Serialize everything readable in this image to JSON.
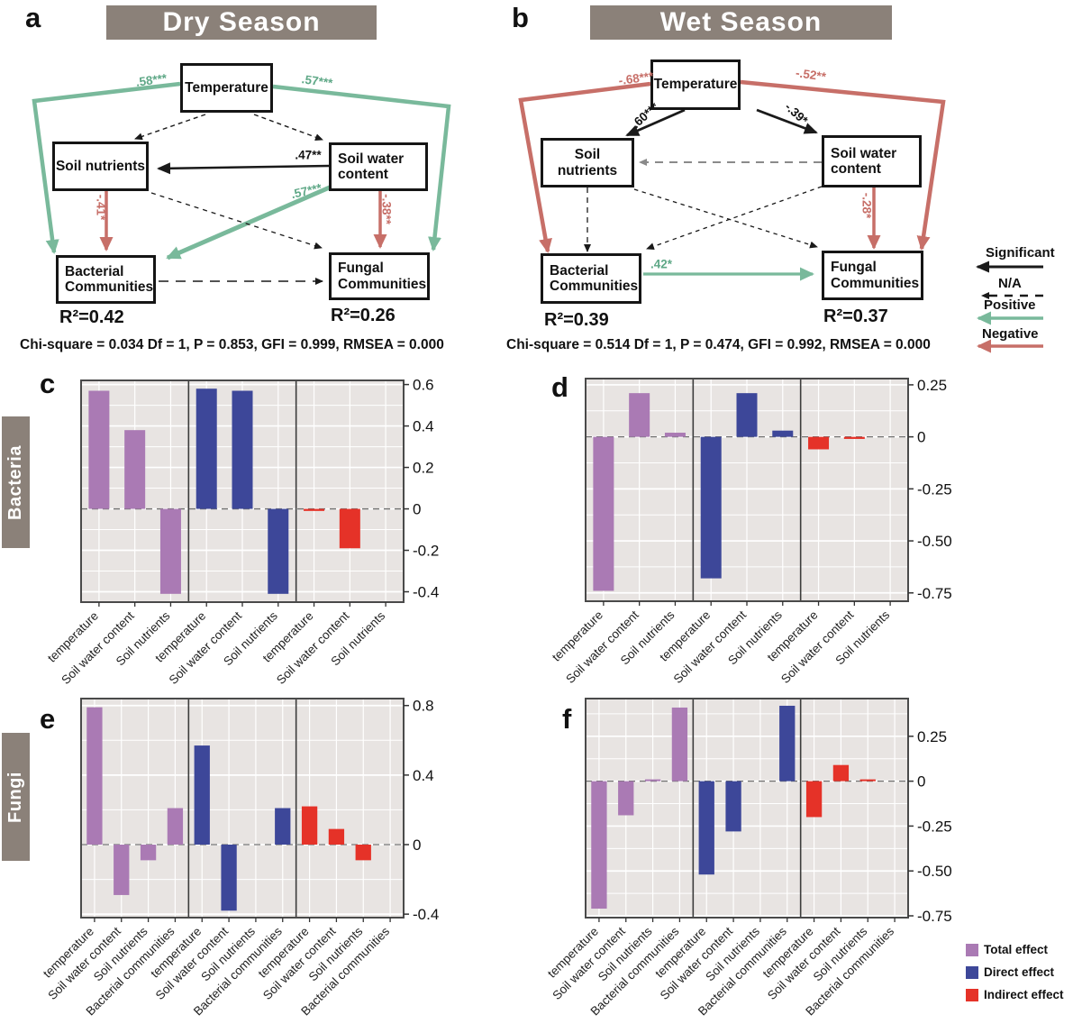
{
  "colors": {
    "banner_gray": "#8b8179",
    "positive_green": "#79b99b",
    "negative_red": "#c76f68",
    "total_purple": "#aa7ab4",
    "direct_blue": "#3d4799",
    "indirect_red": "#e53228",
    "plot_bg": "#e8e4e2"
  },
  "sem": {
    "dry": {
      "letter": "a",
      "title": "Dry Season",
      "boxes": {
        "temperature": "Temperature",
        "nutrients": "Soil nutrients",
        "swc": "Soil water content",
        "bacterial": "Bacterial Communities",
        "fungal": "Fungal Communities"
      },
      "labels": {
        "temp_bacterial": ".58***",
        "temp_fungal": ".57***",
        "swc_nutrients": ".47**",
        "nutrients_bacterial": "-.41*",
        "swc_fungal": "-.38**",
        "swc_bacterial": ".57***"
      },
      "r2_bacterial": "R²=0.42",
      "r2_fungal": "R²=0.26",
      "fit": "Chi-square = 0.034 Df = 1, P = 0.853, GFI = 0.999, RMSEA = 0.000"
    },
    "wet": {
      "letter": "b",
      "title": "Wet Season",
      "boxes": {
        "temperature": "Temperature",
        "nutrients": "Soil nutrients",
        "swc": "Soil water content",
        "bacterial": "Bacterial Communities",
        "fungal": "Fungal Communities"
      },
      "labels": {
        "temp_bacterial": "-.68***",
        "temp_fungal": "-.52**",
        "temp_nutrients": ".60***",
        "temp_swc": "-.39*",
        "swc_fungal": "-.28*",
        "bacterial_fungal": ".42*"
      },
      "r2_bacterial": "R²=0.39",
      "r2_fungal": "R²=0.37",
      "fit": "Chi-square = 0.514 Df = 1, P = 0.474, GFI = 0.992, RMSEA = 0.000"
    }
  },
  "arrow_legend": [
    {
      "label": "Significant",
      "type": "solid-black"
    },
    {
      "label": "N/A",
      "type": "dashed-black"
    },
    {
      "label": "Positive",
      "type": "solid-green"
    },
    {
      "label": "Negative",
      "type": "solid-red"
    }
  ],
  "row_banners": {
    "bacteria": "Bacteria",
    "fungi": "Fungi"
  },
  "effect_legend": [
    {
      "label": "Total effect",
      "color": "#aa7ab4"
    },
    {
      "label": "Direct effect",
      "color": "#3d4799"
    },
    {
      "label": "Indirect effect",
      "color": "#e53228"
    }
  ],
  "chart_data": [
    {
      "id": "c",
      "letter": "c",
      "type": "bar",
      "row": "Bacteria",
      "season": "Dry Season",
      "categories": [
        "temperature",
        "Soil water content",
        "Soil nutrients"
      ],
      "series": [
        {
          "name": "Total effect",
          "color": "#aa7ab4",
          "values": [
            0.57,
            0.38,
            -0.41
          ]
        },
        {
          "name": "Direct effect",
          "color": "#3d4799",
          "values": [
            0.58,
            0.57,
            -0.41
          ]
        },
        {
          "name": "Indirect effect",
          "color": "#e53228",
          "values": [
            -0.01,
            -0.19,
            0
          ]
        }
      ],
      "yticks": [
        0.6,
        0.4,
        0.2,
        0,
        -0.2,
        -0.4
      ],
      "ytick_labels": [
        "0.6",
        "0.4",
        "0.2",
        "0",
        "-0.2",
        "-0.4"
      ],
      "ylim": [
        -0.45,
        0.62
      ],
      "grid": true,
      "zero_line": "dashed"
    },
    {
      "id": "d",
      "letter": "d",
      "type": "bar",
      "row": "Bacteria",
      "season": "Wet Season",
      "categories": [
        "temperature",
        "Soil water content",
        "Soil nutrients"
      ],
      "series": [
        {
          "name": "Total effect",
          "color": "#aa7ab4",
          "values": [
            -0.74,
            0.21,
            0.02
          ]
        },
        {
          "name": "Direct effect",
          "color": "#3d4799",
          "values": [
            -0.68,
            0.21,
            0.03
          ]
        },
        {
          "name": "Indirect effect",
          "color": "#e53228",
          "values": [
            -0.06,
            -0.01,
            0
          ]
        }
      ],
      "yticks": [
        0.25,
        0,
        -0.25,
        -0.5,
        -0.75
      ],
      "ytick_labels": [
        "0.25",
        "0",
        "-0.25",
        "-0.50",
        "-0.75"
      ],
      "ylim": [
        -0.79,
        0.28
      ],
      "grid": true,
      "zero_line": "dashed"
    },
    {
      "id": "e",
      "letter": "e",
      "type": "bar",
      "row": "Fungi",
      "season": "Dry Season",
      "categories": [
        "temperature",
        "Soil water content",
        "Soil nutrients",
        "Bacterial communities"
      ],
      "series": [
        {
          "name": "Total effect",
          "color": "#aa7ab4",
          "values": [
            0.79,
            -0.29,
            -0.09,
            0.21
          ]
        },
        {
          "name": "Direct effect",
          "color": "#3d4799",
          "values": [
            0.57,
            -0.38,
            0,
            0.21
          ]
        },
        {
          "name": "Indirect effect",
          "color": "#e53228",
          "values": [
            0.22,
            0.09,
            -0.09,
            0
          ]
        }
      ],
      "yticks": [
        0.8,
        0.4,
        0,
        -0.4
      ],
      "ytick_labels": [
        "0.8",
        "0.4",
        "0",
        "-0.4"
      ],
      "ylim": [
        -0.42,
        0.84
      ],
      "grid": true,
      "zero_line": "dashed"
    },
    {
      "id": "f",
      "letter": "f",
      "type": "bar",
      "row": "Fungi",
      "season": "Wet Season",
      "categories": [
        "temperature",
        "Soil water content",
        "Soil nutrients",
        "Bacterial communities"
      ],
      "series": [
        {
          "name": "Total effect",
          "color": "#aa7ab4",
          "values": [
            -0.71,
            -0.19,
            0.01,
            0.41
          ]
        },
        {
          "name": "Direct effect",
          "color": "#3d4799",
          "values": [
            -0.52,
            -0.28,
            0,
            0.42
          ]
        },
        {
          "name": "Indirect effect",
          "color": "#e53228",
          "values": [
            -0.2,
            0.09,
            0.01,
            0
          ]
        }
      ],
      "yticks": [
        0.25,
        0,
        -0.25,
        -0.5,
        -0.75
      ],
      "ytick_labels": [
        "0.25",
        "0",
        "-0.25",
        "-0.50",
        "-0.75"
      ],
      "ylim": [
        -0.76,
        0.46
      ],
      "grid": true,
      "zero_line": "dashed"
    }
  ]
}
